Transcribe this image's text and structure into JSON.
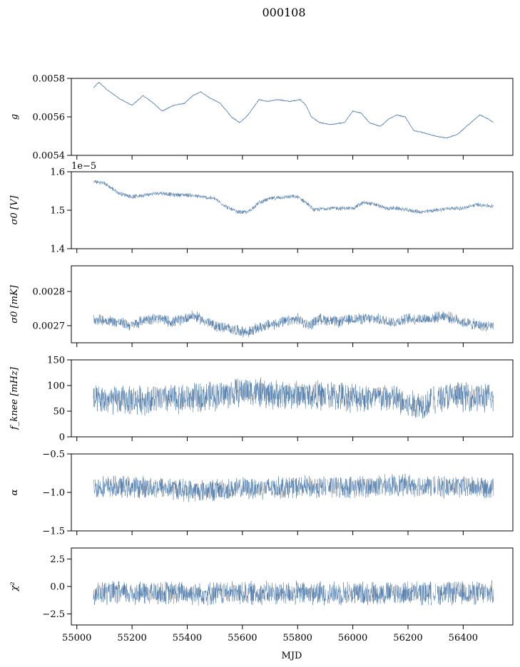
{
  "figure": {
    "title": "000108",
    "xlabel": "MJD"
  },
  "colors": {
    "series": "#4c78a8",
    "axes": "#000000",
    "background": "#ffffff"
  },
  "chart_data": [
    {
      "type": "line",
      "ylabel": "g",
      "ylim": [
        0.0054,
        0.0058
      ],
      "yticks": [
        "0.0054",
        "0.0056",
        "0.0058"
      ],
      "xlim": [
        54980,
        56580
      ],
      "x_range": [
        55060,
        56510
      ],
      "sharex_ticklabels": false,
      "offset_text": "",
      "anchors": [
        [
          55060,
          0.00575
        ],
        [
          55080,
          0.00578
        ],
        [
          55110,
          0.00574
        ],
        [
          55160,
          0.00569
        ],
        [
          55200,
          0.00566
        ],
        [
          55240,
          0.00571
        ],
        [
          55270,
          0.00568
        ],
        [
          55310,
          0.00563
        ],
        [
          55350,
          0.00566
        ],
        [
          55390,
          0.00567
        ],
        [
          55420,
          0.00571
        ],
        [
          55450,
          0.00573
        ],
        [
          55480,
          0.0057
        ],
        [
          55520,
          0.00567
        ],
        [
          55560,
          0.0056
        ],
        [
          55590,
          0.00557
        ],
        [
          55620,
          0.00561
        ],
        [
          55640,
          0.00565
        ],
        [
          55660,
          0.00569
        ],
        [
          55690,
          0.00568
        ],
        [
          55730,
          0.00569
        ],
        [
          55770,
          0.00568
        ],
        [
          55810,
          0.00569
        ],
        [
          55830,
          0.00566
        ],
        [
          55850,
          0.0056
        ],
        [
          55880,
          0.00557
        ],
        [
          55920,
          0.00556
        ],
        [
          55970,
          0.00557
        ],
        [
          56000,
          0.00563
        ],
        [
          56030,
          0.00562
        ],
        [
          56060,
          0.00557
        ],
        [
          56100,
          0.00555
        ],
        [
          56130,
          0.00559
        ],
        [
          56160,
          0.00561
        ],
        [
          56190,
          0.0056
        ],
        [
          56220,
          0.00553
        ],
        [
          56250,
          0.00552
        ],
        [
          56300,
          0.0055
        ],
        [
          56340,
          0.00549
        ],
        [
          56380,
          0.00551
        ],
        [
          56420,
          0.00556
        ],
        [
          56460,
          0.00561
        ],
        [
          56490,
          0.00559
        ],
        [
          56510,
          0.00557
        ]
      ],
      "noise_amplitude": 4e-06,
      "noise_spikes": 0.0
    },
    {
      "type": "line",
      "ylabel": "σ0 [V]",
      "ylim": [
        1.4e-05,
        1.6e-05
      ],
      "yticks": [
        "1.4",
        "1.5",
        "1.6"
      ],
      "xlim": [
        54980,
        56580
      ],
      "x_range": [
        55060,
        56510
      ],
      "sharex_ticklabels": false,
      "offset_text": "1e−5",
      "anchors": [
        [
          55060,
          1.575e-05
        ],
        [
          55100,
          1.57e-05
        ],
        [
          55150,
          1.545e-05
        ],
        [
          55200,
          1.535e-05
        ],
        [
          55250,
          1.54e-05
        ],
        [
          55300,
          1.545e-05
        ],
        [
          55350,
          1.54e-05
        ],
        [
          55400,
          1.54e-05
        ],
        [
          55450,
          1.535e-05
        ],
        [
          55500,
          1.53e-05
        ],
        [
          55540,
          1.51e-05
        ],
        [
          55580,
          1.495e-05
        ],
        [
          55620,
          1.495e-05
        ],
        [
          55660,
          1.52e-05
        ],
        [
          55700,
          1.53e-05
        ],
        [
          55760,
          1.535e-05
        ],
        [
          55800,
          1.535e-05
        ],
        [
          55830,
          1.52e-05
        ],
        [
          55860,
          1.5e-05
        ],
        [
          55900,
          1.505e-05
        ],
        [
          55950,
          1.505e-05
        ],
        [
          56000,
          1.505e-05
        ],
        [
          56040,
          1.52e-05
        ],
        [
          56080,
          1.515e-05
        ],
        [
          56120,
          1.505e-05
        ],
        [
          56160,
          1.505e-05
        ],
        [
          56200,
          1.5e-05
        ],
        [
          56250,
          1.495e-05
        ],
        [
          56300,
          1.5e-05
        ],
        [
          56350,
          1.505e-05
        ],
        [
          56400,
          1.505e-05
        ],
        [
          56450,
          1.515e-05
        ],
        [
          56510,
          1.51e-05
        ]
      ],
      "noise_amplitude": 6e-08,
      "noise_spikes": 0.0
    },
    {
      "type": "line",
      "ylabel": "σ0 [mK]",
      "ylim": [
        0.00265,
        0.002875
      ],
      "yticks": [
        "0.0027",
        "0.0028"
      ],
      "ytick_values": [
        0.0027,
        0.0028
      ],
      "xlim": [
        54980,
        56580
      ],
      "x_range": [
        55060,
        56510
      ],
      "sharex_ticklabels": false,
      "offset_text": "",
      "anchors": [
        [
          55060,
          0.00272
        ],
        [
          55150,
          0.00271
        ],
        [
          55200,
          0.0027
        ],
        [
          55250,
          0.00272
        ],
        [
          55300,
          0.00272
        ],
        [
          55350,
          0.00271
        ],
        [
          55420,
          0.00273
        ],
        [
          55500,
          0.0027
        ],
        [
          55560,
          0.00269
        ],
        [
          55620,
          0.00268
        ],
        [
          55680,
          0.0027
        ],
        [
          55750,
          0.00271
        ],
        [
          55800,
          0.00272
        ],
        [
          55840,
          0.0027
        ],
        [
          55880,
          0.00272
        ],
        [
          55950,
          0.00271
        ],
        [
          56000,
          0.00272
        ],
        [
          56080,
          0.00272
        ],
        [
          56150,
          0.00271
        ],
        [
          56200,
          0.00272
        ],
        [
          56280,
          0.00272
        ],
        [
          56330,
          0.00273
        ],
        [
          56400,
          0.00271
        ],
        [
          56460,
          0.0027
        ],
        [
          56510,
          0.0027
        ]
      ],
      "noise_amplitude": 1.8e-05,
      "noise_spikes": 0.0
    },
    {
      "type": "line",
      "ylabel": "f_knee [mHz]",
      "ylim": [
        0,
        150
      ],
      "yticks": [
        "0",
        "50",
        "100",
        "150"
      ],
      "ytick_values": [
        0,
        50,
        100,
        150
      ],
      "xlim": [
        54980,
        56580
      ],
      "x_range": [
        55060,
        56510
      ],
      "sharex_ticklabels": false,
      "offset_text": "",
      "anchors": [
        [
          55060,
          70
        ],
        [
          55200,
          72
        ],
        [
          55400,
          75
        ],
        [
          55500,
          80
        ],
        [
          55620,
          90
        ],
        [
          55700,
          82
        ],
        [
          55800,
          83
        ],
        [
          55900,
          80
        ],
        [
          56000,
          78
        ],
        [
          56150,
          75
        ],
        [
          56200,
          60
        ],
        [
          56260,
          65
        ],
        [
          56330,
          78
        ],
        [
          56400,
          80
        ],
        [
          56510,
          75
        ]
      ],
      "noise_amplitude": 32,
      "noise_spikes": 0.0
    },
    {
      "type": "line",
      "ylabel": "α",
      "ylim": [
        -1.5,
        -0.5
      ],
      "yticks": [
        "−1.5",
        "−1.0",
        "−0.5"
      ],
      "ytick_values": [
        -1.5,
        -1.0,
        -0.5
      ],
      "xlim": [
        54980,
        56580
      ],
      "x_range": [
        55060,
        56510
      ],
      "sharex_ticklabels": false,
      "offset_text": "",
      "anchors": [
        [
          55060,
          -0.93
        ],
        [
          55300,
          -0.93
        ],
        [
          55420,
          -0.98
        ],
        [
          55600,
          -0.95
        ],
        [
          55800,
          -0.93
        ],
        [
          56000,
          -0.93
        ],
        [
          56200,
          -0.9
        ],
        [
          56300,
          -0.93
        ],
        [
          56510,
          -0.93
        ]
      ],
      "noise_amplitude": 0.16,
      "noise_spikes": 0.0
    },
    {
      "type": "line",
      "ylabel": "χ²",
      "ylim": [
        -3.5,
        3.5
      ],
      "yticks": [
        "−2.5",
        "0.0",
        "2.5"
      ],
      "ytick_values": [
        -2.5,
        0,
        2.5
      ],
      "xlim": [
        54980,
        56580
      ],
      "x_range": [
        55060,
        56510
      ],
      "sharex_ticklabels": true,
      "xticks": [
        55000,
        55200,
        55400,
        55600,
        55800,
        56000,
        56200,
        56400
      ],
      "offset_text": "",
      "anchors": [
        [
          55060,
          -0.6
        ],
        [
          56510,
          -0.6
        ]
      ],
      "noise_amplitude": 1.2,
      "noise_spikes": 0.0
    }
  ]
}
